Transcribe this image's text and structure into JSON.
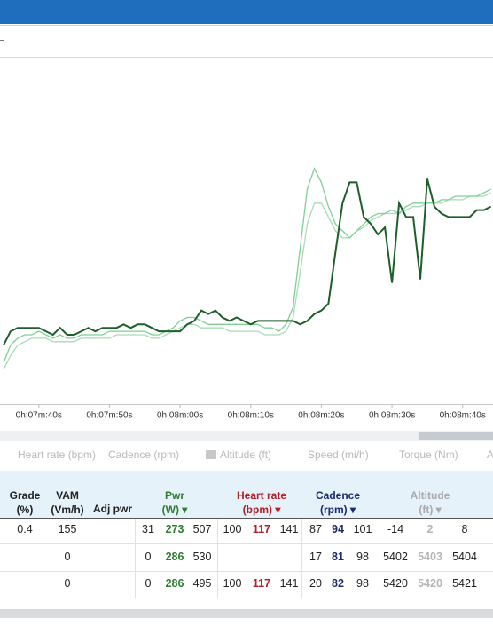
{
  "chart_data": {
    "type": "line",
    "x": [
      455,
      456,
      457,
      458,
      459,
      460,
      461,
      462,
      463,
      464,
      465,
      466,
      467,
      468,
      469,
      470,
      471,
      472,
      473,
      474,
      475,
      476,
      477,
      478,
      479,
      480,
      481,
      482,
      483,
      484,
      485,
      486,
      487,
      488,
      489,
      490,
      491,
      492,
      493,
      494,
      495,
      496,
      497,
      498,
      499,
      500,
      501,
      502,
      503,
      504,
      505,
      506,
      507,
      508,
      509,
      510,
      511,
      512,
      513,
      514,
      515,
      516,
      517,
      518,
      519,
      520,
      521,
      522,
      523,
      524
    ],
    "series": [
      {
        "color": "#a8dcb8",
        "values": [
          10,
          14,
          17,
          18,
          19,
          19,
          19,
          18,
          18,
          18,
          18,
          19,
          19,
          19,
          19,
          19,
          20,
          20,
          20,
          20,
          20,
          19,
          19,
          20,
          21,
          22,
          23,
          23,
          22,
          22,
          22,
          22,
          21,
          21,
          21,
          21,
          21,
          20,
          20,
          20,
          21,
          25,
          38,
          52,
          58,
          58,
          54,
          50,
          48,
          48,
          50,
          51,
          53,
          54,
          55,
          55,
          55,
          56,
          57,
          57,
          58,
          58,
          58,
          59,
          59,
          59,
          60,
          60,
          60,
          61
        ]
      },
      {
        "color": "#7fcf95",
        "values": [
          12,
          17,
          19,
          20,
          20,
          21,
          20,
          19,
          20,
          19,
          19,
          20,
          20,
          20,
          20,
          21,
          21,
          21,
          21,
          21,
          21,
          20,
          20,
          21,
          22,
          24,
          25,
          25,
          24,
          23,
          23,
          23,
          23,
          23,
          23,
          23,
          23,
          22,
          22,
          21,
          23,
          28,
          45,
          62,
          68,
          64,
          57,
          52,
          50,
          48,
          50,
          52,
          54,
          55,
          55,
          56,
          55,
          57,
          58,
          58,
          58,
          58,
          59,
          59,
          60,
          60,
          60,
          60,
          61,
          62
        ]
      },
      {
        "color": "#1e5e2a",
        "values": [
          17,
          21,
          22,
          22,
          22,
          22,
          21,
          20,
          22,
          20,
          20,
          21,
          22,
          21,
          22,
          22,
          22,
          23,
          22,
          23,
          23,
          22,
          21,
          21,
          21,
          21,
          23,
          24,
          27,
          26,
          27,
          25,
          24,
          25,
          24,
          23,
          24,
          24,
          24,
          24,
          24,
          24,
          23,
          24,
          26,
          27,
          29,
          44,
          58,
          64,
          64,
          54,
          52,
          49,
          51,
          35,
          58,
          54,
          54,
          36,
          65,
          57,
          55,
          54,
          54,
          54,
          54,
          56,
          56,
          57
        ]
      }
    ],
    "xlim": [
      454.5,
      524.3
    ],
    "ylim": [
      0,
      100
    ],
    "xticks": [
      {
        "value": 460,
        "label": "0h:07m:40s"
      },
      {
        "value": 470,
        "label": "0h:07m:50s"
      },
      {
        "value": 480,
        "label": "0h:08m:00s"
      },
      {
        "value": 490,
        "label": "0h:08m:10s"
      },
      {
        "value": 500,
        "label": "0h:08m:20s"
      },
      {
        "value": 510,
        "label": "0h:08m:30s"
      },
      {
        "value": 520,
        "label": "0h:08m:40s"
      }
    ],
    "legend": [
      "Heart rate (bpm)",
      "Cadence (rpm)",
      "Altitude (ft)",
      "Speed (mi/h)",
      "Torque (Nm)",
      "A"
    ]
  },
  "table": {
    "headers": [
      [
        "Grade",
        "(%)"
      ],
      [
        "VAM",
        "(Vm/h)"
      ],
      [
        "Adj pwr"
      ],
      [
        "Pwr",
        "(W) ▾"
      ],
      [
        "Heart rate",
        "(bpm) ▾"
      ],
      [
        "Cadence",
        "(rpm) ▾"
      ],
      [
        "Altitude",
        "(ft) ▾"
      ]
    ],
    "rows": [
      [
        0.4,
        155,
        null,
        31,
        273,
        507,
        100,
        117,
        141,
        87,
        94,
        101,
        -14,
        2,
        8
      ],
      [
        null,
        0,
        null,
        0,
        286,
        530,
        null,
        null,
        null,
        17,
        81,
        98,
        5402,
        5403,
        5404
      ],
      [
        null,
        0,
        null,
        0,
        286,
        495,
        100,
        117,
        141,
        20,
        82,
        98,
        5420,
        5420,
        5421
      ]
    ]
  }
}
